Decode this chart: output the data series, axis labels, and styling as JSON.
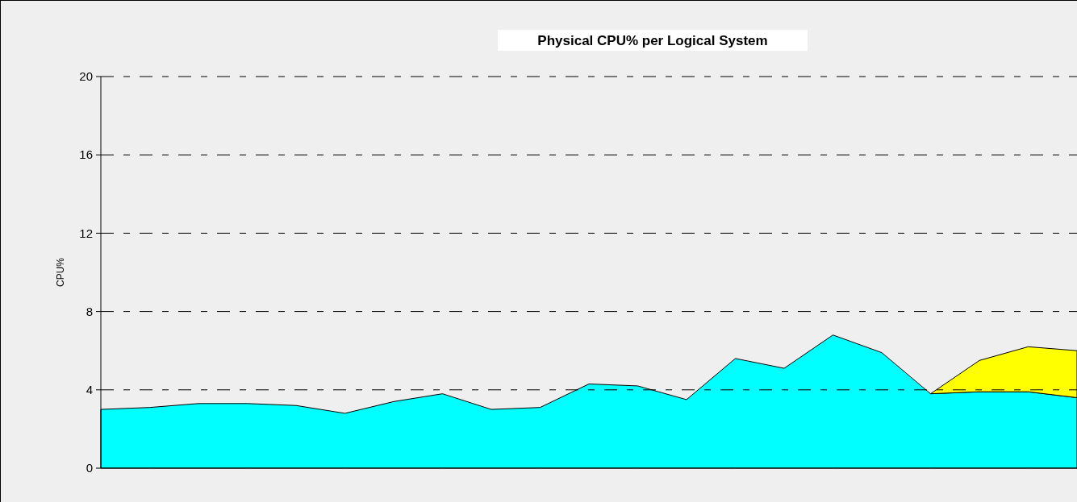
{
  "chart_data": {
    "type": "area",
    "title": "Physical CPU% per Logical System",
    "ylabel": "CPU%",
    "stacked": true,
    "grid": "y",
    "categories": [
      null,
      null,
      null,
      null,
      null,
      null,
      null,
      null,
      null,
      null,
      null,
      null,
      null,
      null,
      null,
      null,
      null,
      null,
      null,
      null,
      null
    ],
    "ylim": [
      0,
      20
    ],
    "yticks": [
      0,
      4,
      8,
      12,
      16,
      20
    ],
    "series": [
      {
        "color": "#00ffff",
        "values": [
          3.0,
          3.1,
          3.3,
          3.3,
          3.2,
          2.8,
          3.4,
          3.8,
          3.0,
          3.1,
          4.3,
          4.2,
          3.5,
          5.6,
          5.1,
          6.8,
          5.9,
          3.8,
          3.9,
          3.9,
          3.6
        ]
      },
      {
        "color": "#ffff00",
        "values": [
          null,
          null,
          null,
          null,
          null,
          null,
          null,
          null,
          null,
          null,
          null,
          null,
          null,
          null,
          null,
          null,
          null,
          0,
          1.6,
          2.3,
          2.4
        ]
      }
    ]
  }
}
